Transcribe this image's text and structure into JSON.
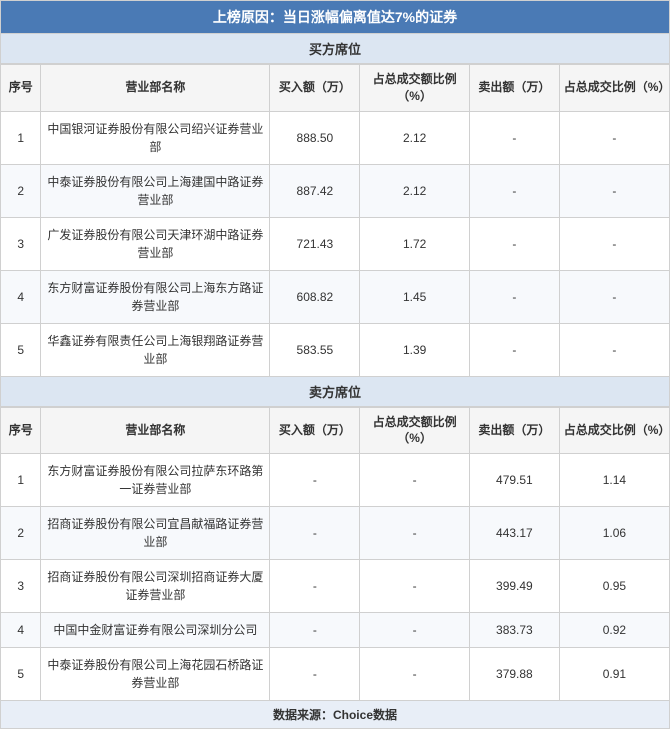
{
  "title": "上榜原因：当日涨幅偏离值达7%的证券",
  "buyer_section": {
    "header": "买方席位",
    "columns": {
      "seq": "序号",
      "name": "营业部名称",
      "buy_amount": "买入额（万）",
      "buy_pct": "占总成交额比例（%）",
      "sell_amount": "卖出额（万）",
      "sell_pct": "占总成交比例（%）"
    },
    "rows": [
      {
        "seq": "1",
        "name": "中国银河证券股份有限公司绍兴证券营业部",
        "buy_amount": "888.50",
        "buy_pct": "2.12",
        "sell_amount": "-",
        "sell_pct": "-"
      },
      {
        "seq": "2",
        "name": "中泰证券股份有限公司上海建国中路证券营业部",
        "buy_amount": "887.42",
        "buy_pct": "2.12",
        "sell_amount": "-",
        "sell_pct": "-"
      },
      {
        "seq": "3",
        "name": "广发证券股份有限公司天津环湖中路证券营业部",
        "buy_amount": "721.43",
        "buy_pct": "1.72",
        "sell_amount": "-",
        "sell_pct": "-"
      },
      {
        "seq": "4",
        "name": "东方财富证券股份有限公司上海东方路证券营业部",
        "buy_amount": "608.82",
        "buy_pct": "1.45",
        "sell_amount": "-",
        "sell_pct": "-"
      },
      {
        "seq": "5",
        "name": "华鑫证券有限责任公司上海银翔路证券营业部",
        "buy_amount": "583.55",
        "buy_pct": "1.39",
        "sell_amount": "-",
        "sell_pct": "-"
      }
    ]
  },
  "seller_section": {
    "header": "卖方席位",
    "columns": {
      "seq": "序号",
      "name": "营业部名称",
      "buy_amount": "买入额（万）",
      "buy_pct": "占总成交额比例（%）",
      "sell_amount": "卖出额（万）",
      "sell_pct": "占总成交比例（%）"
    },
    "rows": [
      {
        "seq": "1",
        "name": "东方财富证券股份有限公司拉萨东环路第一证券营业部",
        "buy_amount": "-",
        "buy_pct": "-",
        "sell_amount": "479.51",
        "sell_pct": "1.14"
      },
      {
        "seq": "2",
        "name": "招商证券股份有限公司宜昌献福路证券营业部",
        "buy_amount": "-",
        "buy_pct": "-",
        "sell_amount": "443.17",
        "sell_pct": "1.06"
      },
      {
        "seq": "3",
        "name": "招商证券股份有限公司深圳招商证券大厦证券营业部",
        "buy_amount": "-",
        "buy_pct": "-",
        "sell_amount": "399.49",
        "sell_pct": "0.95"
      },
      {
        "seq": "4",
        "name": "中国中金财富证券有限公司深圳分公司",
        "buy_amount": "-",
        "buy_pct": "-",
        "sell_amount": "383.73",
        "sell_pct": "0.92"
      },
      {
        "seq": "5",
        "name": "中泰证券股份有限公司上海花园石桥路证券营业部",
        "buy_amount": "-",
        "buy_pct": "-",
        "sell_amount": "379.88",
        "sell_pct": "0.91"
      }
    ]
  },
  "footer": "数据来源：Choice数据"
}
